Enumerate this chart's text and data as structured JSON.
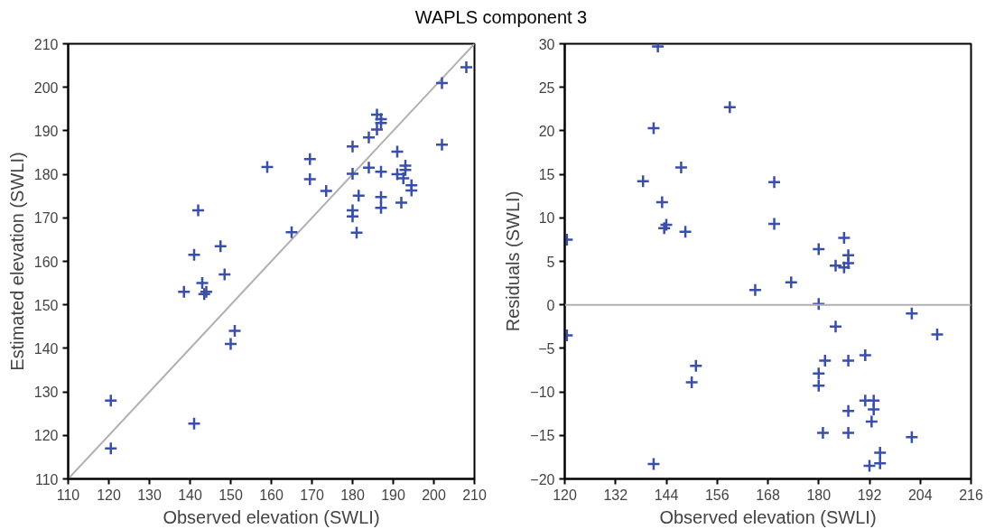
{
  "chart_data": [
    {
      "type": "scatter",
      "title": "WAPLS component 3",
      "xlabel": "Observed elevation (SWLI)",
      "ylabel": "Estimated elevation (SWLI)",
      "grid": false,
      "xlim": [
        110,
        210
      ],
      "ylim": [
        110,
        210
      ],
      "xticks": [
        110,
        120,
        130,
        140,
        150,
        160,
        170,
        180,
        190,
        200,
        210
      ],
      "yticks": [
        110,
        120,
        130,
        140,
        150,
        160,
        170,
        180,
        190,
        200,
        210
      ],
      "series": [
        {
          "type": "line",
          "color": "#b0b0b0",
          "x": [
            110,
            210
          ],
          "values": [
            110,
            210
          ]
        },
        {
          "marker": "cross",
          "color": "#3a4fa8",
          "x": [
            120.5,
            120.5,
            141,
            142,
            141,
            138.5,
            143,
            144,
            143.5,
            147.5,
            148.5,
            150,
            151,
            159,
            165,
            169.5,
            169.5,
            173.5,
            180,
            180,
            180,
            180,
            181.5,
            181,
            184,
            184,
            186,
            186,
            187,
            187,
            187,
            187,
            187,
            191,
            191,
            193,
            193,
            192.5,
            192,
            194.5,
            194.5,
            202,
            202,
            208
          ],
          "values": [
            128,
            117,
            122.7,
            171.7,
            161.5,
            153,
            155,
            153,
            152.5,
            163.5,
            157,
            141,
            144,
            181.7,
            166.7,
            183.5,
            178.9,
            176.2,
            186.4,
            180.1,
            171.7,
            170.3,
            175.1,
            166.6,
            188.5,
            181.5,
            193.7,
            190.3,
            192.7,
            191.8,
            174.8,
            172.3,
            180.6,
            185.2,
            180,
            182,
            181,
            179.1,
            173.5,
            177.5,
            176.3,
            201,
            186.8,
            204.6
          ]
        }
      ]
    },
    {
      "type": "scatter",
      "xlabel": "Observed elevation (SWLI)",
      "ylabel": "Residuals (SWLI)",
      "marker": "cross",
      "grid": false,
      "xlim": [
        120,
        216
      ],
      "ylim": [
        -20,
        30
      ],
      "xticks": [
        120,
        132,
        144,
        156,
        168,
        180,
        192,
        204,
        216
      ],
      "yticks": [
        -20,
        -15,
        -10,
        -5,
        0,
        5,
        10,
        15,
        20,
        25,
        30
      ],
      "ref_lines": [
        {
          "axis": "y",
          "value": 0,
          "color": "#b0b0b0"
        }
      ],
      "series": [
        {
          "color": "#3a4fa8",
          "x": [
            120.5,
            120.5,
            141,
            142,
            141,
            138.5,
            143,
            144,
            143.5,
            147.5,
            148.5,
            150,
            151,
            159,
            165,
            169.5,
            169.5,
            173.5,
            180,
            180,
            180,
            180,
            181.5,
            181,
            184,
            184,
            186,
            186,
            187,
            187,
            187,
            187,
            187,
            191,
            191,
            193,
            193,
            192.5,
            192,
            194.5,
            194.5,
            202,
            202,
            208
          ],
          "values": [
            7.5,
            -3.5,
            -18.3,
            29.7,
            20.3,
            14.2,
            11.8,
            9.2,
            8.8,
            15.8,
            8.4,
            -8.9,
            -7,
            22.7,
            1.7,
            14.1,
            9.3,
            2.6,
            6.4,
            0.1,
            -7.9,
            -9.3,
            -6.4,
            -14.7,
            4.5,
            -2.5,
            7.7,
            4.3,
            5.7,
            4.8,
            -12.2,
            -14.7,
            -6.4,
            -5.8,
            -11,
            -11,
            -12,
            -13.4,
            -18.5,
            -17,
            -18.2,
            -1,
            -15.2,
            -3.4
          ]
        }
      ]
    }
  ]
}
